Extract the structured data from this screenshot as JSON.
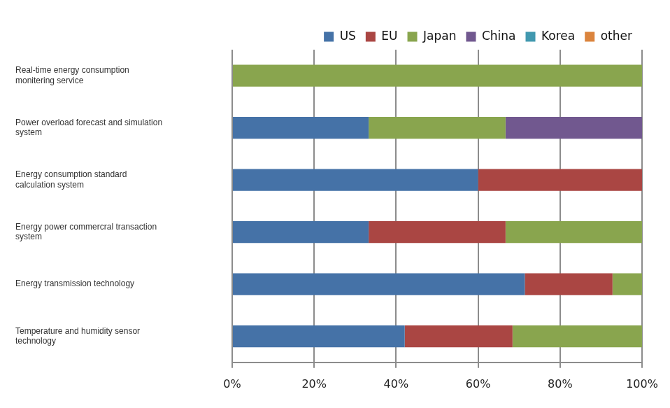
{
  "chart_data": {
    "type": "bar",
    "orientation": "horizontal",
    "stacked": true,
    "grid": true,
    "legend": "top",
    "categories": [
      "Real-time energy consumption monitering service",
      "Power overload forecast and simulation system",
      "Energy consumption standard calculation system",
      "Energy power commercral transaction system",
      "Energy transmission technology",
      "Temperature and humidity sensor technology"
    ],
    "series": [
      {
        "name": "US",
        "color": "#4572A7",
        "values": [
          0,
          33.3,
          60,
          33.3,
          71.4,
          42.1
        ]
      },
      {
        "name": "EU",
        "color": "#AA4643",
        "values": [
          0,
          0,
          40,
          33.4,
          21.4,
          26.3
        ]
      },
      {
        "name": "Japan",
        "color": "#89A54E",
        "values": [
          100,
          33.4,
          0,
          33.3,
          7.2,
          31.6
        ]
      },
      {
        "name": "China",
        "color": "#71588F",
        "values": [
          0,
          33.3,
          0,
          0,
          0,
          0
        ]
      },
      {
        "name": "Korea",
        "color": "#4198AF",
        "values": [
          0,
          0,
          0,
          0,
          0,
          0
        ]
      },
      {
        "name": "other",
        "color": "#DB843D",
        "values": [
          0,
          0,
          0,
          0,
          0,
          0
        ]
      }
    ],
    "xlim": [
      0,
      100
    ],
    "xticks": [
      {
        "value": 0,
        "label": "0%"
      },
      {
        "value": 20,
        "label": "20%"
      },
      {
        "value": 40,
        "label": "40%"
      },
      {
        "value": 60,
        "label": "60%"
      },
      {
        "value": 80,
        "label": "80%"
      },
      {
        "value": 100,
        "label": "100%"
      }
    ]
  }
}
